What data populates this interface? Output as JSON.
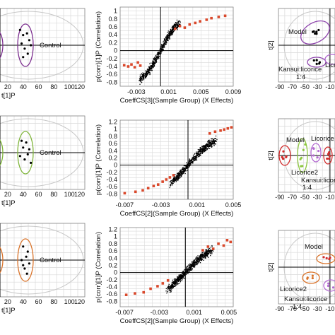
{
  "colors": {
    "grid": "#d9d9d9",
    "axis": "#000000",
    "ellipse_outer": "#c8c8c8",
    "control_r1": "#7b2d8e",
    "control_r2": "#7fb53a",
    "control_r3": "#d9732a",
    "left_edge_r1": "#7b2d8e",
    "left_edge_r2": "#7fb53a",
    "left_edge_r3": "#d9732a",
    "model": "#d12a2a",
    "licorice": "#8cc63f",
    "licorice2": "#b36ad1",
    "kansui": "#8e44ad",
    "scatter_point": "#000000",
    "highlight_point": "#d9482b"
  },
  "left_panels": [
    {
      "xlabel": "t[1]P",
      "xticks": [
        "20",
        "40",
        "60",
        "80",
        "100",
        "120"
      ],
      "group_label": "Control",
      "chart_data": {
        "type": "scatter",
        "xlim": [
          10,
          120
        ],
        "series": [
          {
            "name": "Control",
            "x": [
              36,
              40,
              45,
              48,
              38,
              50,
              42,
              46,
              40
            ],
            "y": [
              0.9,
              0.6,
              0.7,
              0.3,
              0.1,
              0.0,
              -0.2,
              -0.5,
              -0.7
            ]
          }
        ]
      }
    },
    {
      "xlabel": "t[1]P",
      "xticks": [
        "20",
        "40",
        "60",
        "80",
        "100",
        "120"
      ],
      "group_label": "Control",
      "chart_data": {
        "type": "scatter",
        "xlim": [
          10,
          120
        ],
        "series": [
          {
            "name": "Control",
            "x": [
              38,
              44,
              48,
              40,
              46,
              42,
              50,
              36
            ],
            "y": [
              0.7,
              0.6,
              0.2,
              0.3,
              -0.1,
              -0.4,
              -0.6,
              -0.2
            ]
          }
        ]
      }
    },
    {
      "xlabel": "t[1]P",
      "xticks": [
        "20",
        "40",
        "60",
        "80",
        "100",
        "120"
      ],
      "group_label": "Control",
      "chart_data": {
        "type": "scatter",
        "xlim": [
          10,
          120
        ],
        "series": [
          {
            "name": "Control",
            "x": [
              40,
              46,
              44,
              38,
              48,
              42,
              45,
              40
            ],
            "y": [
              0.8,
              0.5,
              0.2,
              0.0,
              -0.2,
              -0.5,
              -0.8,
              -0.3
            ]
          }
        ]
      }
    }
  ],
  "s_plots": [
    {
      "ylabel": "p(corr)[1]P (Correlation)",
      "xlabel": "CoeffCS[3](Sample Group) (X Effects)",
      "xticks": [
        "-0.003",
        "0.001",
        "0.005",
        "0.009"
      ],
      "yticks": [
        "1",
        "0.8",
        "0.6",
        "0.4",
        "0.2",
        "0",
        "-0.2",
        "-0.4",
        "-0.6",
        "-0.8"
      ],
      "chart_data": {
        "type": "scatter",
        "xlim": [
          -0.005,
          0.009
        ],
        "ylim": [
          -0.9,
          1.1
        ],
        "yticks": [
          1,
          0.8,
          0.6,
          0.4,
          0.2,
          0,
          -0.2,
          -0.4,
          -0.6,
          -0.8
        ],
        "xticks": [
          -0.003,
          0.001,
          0.005,
          0.009
        ],
        "highlighted": {
          "x": [
            -0.0045,
            -0.004,
            -0.0036,
            -0.0032,
            -0.0028,
            -0.0025,
            0.0018,
            0.0024,
            0.003,
            0.0036,
            0.0043,
            0.0049,
            0.0057,
            0.0063,
            0.0072,
            0.008
          ],
          "y": [
            -0.37,
            -0.4,
            -0.35,
            -0.42,
            -0.3,
            -0.38,
            0.55,
            0.62,
            0.58,
            0.66,
            0.7,
            0.74,
            0.78,
            0.82,
            0.85,
            0.88
          ]
        },
        "cloud": {
          "x_range": [
            -0.0025,
            0.0022
          ],
          "slope": 700,
          "count": 700
        }
      }
    },
    {
      "ylabel": "p(corr)[1]P (Correlation)",
      "xlabel": "CoeffCS[2](Sample Group) (X Effects)",
      "xticks": [
        "-0.007",
        "-0.003",
        "0.001",
        "0.005"
      ],
      "yticks": [
        "1.2",
        "1",
        "0.8",
        "0.6",
        "0.4",
        "0.2",
        "0",
        "-0.2",
        "-0.4",
        "-0.6",
        "-0.8"
      ],
      "chart_data": {
        "type": "scatter",
        "xlim": [
          -0.0075,
          0.005
        ],
        "ylim": [
          -0.95,
          1.25
        ],
        "yticks": [
          1.2,
          1,
          0.8,
          0.6,
          0.4,
          0.2,
          0,
          -0.2,
          -0.4,
          -0.6,
          -0.8
        ],
        "xticks": [
          -0.007,
          -0.003,
          0.001,
          0.005
        ],
        "highlighted": {
          "x": [
            -0.007,
            -0.0058,
            -0.005,
            -0.0044,
            -0.0038,
            -0.0033,
            -0.0028,
            -0.0024,
            -0.002,
            -0.0016,
            0.0024,
            0.003,
            0.0036,
            0.004,
            0.0044,
            0.0048
          ],
          "y": [
            -0.78,
            -0.74,
            -0.7,
            -0.64,
            -0.58,
            -0.54,
            -0.46,
            -0.4,
            -0.34,
            -0.28,
            0.88,
            0.93,
            0.96,
            0.99,
            1.02,
            1.05
          ]
        },
        "cloud": {
          "x_range": [
            -0.0018,
            0.003
          ],
          "slope": 520,
          "count": 700
        }
      }
    },
    {
      "ylabel": "p(corr)[1]P (Correlation)",
      "xlabel": "CoeffCS[2](Sample Group) (X Effects)",
      "xticks": [
        "-0.007",
        "-0.003",
        "0.001",
        "0.005"
      ],
      "yticks": [
        "1.2",
        "1",
        "0.8",
        "0.6",
        "0.4",
        "0.2",
        "0",
        "-0.2",
        "-0.4",
        "-0.6",
        "-0.8"
      ],
      "chart_data": {
        "type": "scatter",
        "xlim": [
          -0.0075,
          0.0055
        ],
        "ylim": [
          -0.95,
          1.25
        ],
        "yticks": [
          1.2,
          1,
          0.8,
          0.6,
          0.4,
          0.2,
          0,
          -0.2,
          -0.4,
          -0.6,
          -0.8
        ],
        "xticks": [
          -0.007,
          -0.003,
          0.001,
          0.005
        ],
        "highlighted": {
          "x": [
            -0.0068,
            -0.0058,
            -0.0048,
            -0.004,
            -0.0032,
            -0.0026,
            -0.002,
            0.002,
            0.0026,
            0.0032,
            0.0038,
            0.0044,
            0.0048,
            0.0052
          ],
          "y": [
            -0.62,
            -0.58,
            -0.55,
            -0.45,
            -0.38,
            -0.3,
            -0.22,
            0.62,
            0.72,
            0.66,
            0.8,
            0.75,
            0.9,
            0.85
          ]
        },
        "cloud": {
          "x_range": [
            -0.002,
            0.003
          ],
          "slope": 450,
          "count": 750
        }
      }
    }
  ],
  "right_panels": [
    {
      "ylabel": "t[2]",
      "xticks": [
        "-90",
        "-70",
        "-50",
        "-30",
        "-10"
      ],
      "labels": [
        "Model",
        "Licorice",
        "Kansui:licorice",
        "1:4"
      ],
      "chart_data": {
        "type": "scatter",
        "xlim": [
          -92,
          -2
        ]
      }
    },
    {
      "ylabel": "t[2]",
      "xticks": [
        "-90",
        "-70",
        "-50",
        "-30",
        "-10"
      ],
      "labels": [
        "Model",
        "Licorice",
        "Licorice2",
        "Kansui:licoric",
        "1:4"
      ],
      "chart_data": {
        "type": "scatter",
        "xlim": [
          -92,
          -2
        ]
      }
    },
    {
      "ylabel": "t[2]",
      "xticks": [
        "-90",
        "-70",
        "-50",
        "-30",
        "-10"
      ],
      "labels": [
        "Model",
        "Licorice2",
        "Kansui:licorice",
        "1:4"
      ],
      "chart_data": {
        "type": "scatter",
        "xlim": [
          -92,
          -2
        ]
      }
    }
  ]
}
